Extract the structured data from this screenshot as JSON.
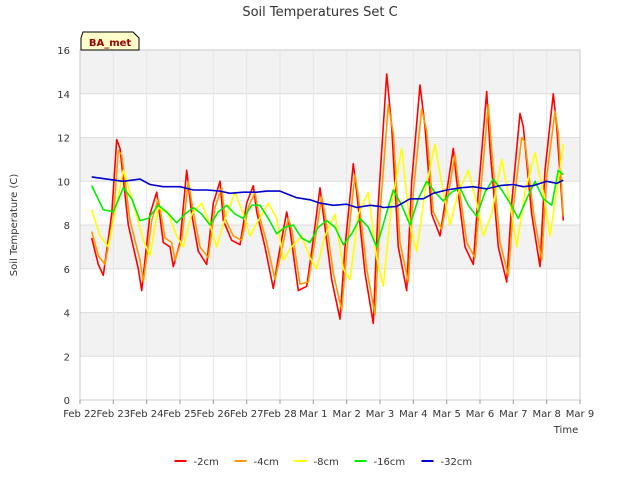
{
  "chart_data": {
    "type": "line",
    "title": "Soil Temperatures Set C",
    "xlabel": "Time",
    "ylabel": "Soil Temperature (C)",
    "badge": "BA_met",
    "ylim": [
      0,
      16
    ],
    "yticks": [
      0,
      2,
      4,
      6,
      8,
      10,
      12,
      14,
      16
    ],
    "xlim": [
      0,
      15
    ],
    "xticks": [
      0,
      1,
      2,
      3,
      4,
      5,
      6,
      7,
      8,
      9,
      10,
      11,
      12,
      13,
      14,
      15
    ],
    "xtick_labels": [
      "Feb 22",
      "Feb 23",
      "Feb 24",
      "Feb 25",
      "Feb 26",
      "Feb 27",
      "Feb 28",
      "Mar 1",
      "Mar 2",
      "Mar 3",
      "Mar 4",
      "Mar 5",
      "Mar 6",
      "Mar 7",
      "Mar 8",
      "Mar 9"
    ],
    "x_unit": "days since Feb 22",
    "grid": true,
    "legend_position": "bottom",
    "series": [
      {
        "name": "-2cm",
        "color": "#ff0000",
        "x": [
          0.35,
          0.55,
          0.7,
          0.95,
          1.1,
          1.2,
          1.45,
          1.75,
          1.85,
          2.1,
          2.3,
          2.5,
          2.7,
          2.8,
          3.0,
          3.2,
          3.35,
          3.55,
          3.8,
          4.0,
          4.2,
          4.3,
          4.55,
          4.8,
          5.0,
          5.2,
          5.3,
          5.55,
          5.8,
          5.95,
          6.2,
          6.3,
          6.55,
          6.8,
          6.95,
          7.2,
          7.3,
          7.55,
          7.8,
          7.95,
          8.2,
          8.3,
          8.55,
          8.8,
          8.95,
          9.2,
          9.35,
          9.55,
          9.8,
          9.95,
          10.2,
          10.35,
          10.55,
          10.8,
          10.95,
          11.2,
          11.3,
          11.55,
          11.8,
          11.95,
          12.2,
          12.3,
          12.55,
          12.8,
          12.95,
          13.2,
          13.3,
          13.55,
          13.8,
          13.95,
          14.2,
          14.3,
          14.5
        ],
        "y": [
          7.4,
          6.2,
          5.7,
          8.5,
          11.9,
          11.5,
          8.0,
          6.0,
          5.0,
          8.5,
          9.5,
          7.2,
          7.0,
          6.1,
          7.2,
          10.5,
          8.5,
          6.8,
          6.2,
          9.0,
          10.0,
          8.2,
          7.3,
          7.1,
          9.0,
          9.8,
          8.6,
          7.0,
          5.1,
          6.5,
          8.6,
          7.8,
          5.0,
          5.2,
          6.8,
          9.7,
          8.5,
          5.5,
          3.7,
          7.0,
          10.8,
          9.5,
          5.8,
          3.5,
          9.0,
          14.9,
          12.5,
          7.0,
          5.0,
          10.0,
          14.4,
          12.5,
          8.5,
          7.5,
          9.0,
          11.5,
          10.0,
          7.0,
          6.2,
          9.5,
          14.1,
          11.5,
          7.0,
          5.4,
          9.0,
          13.1,
          12.5,
          8.5,
          6.1,
          10.5,
          14.0,
          12.5,
          8.2
        ]
      },
      {
        "name": "-4cm",
        "color": "#ff9900",
        "x": [
          0.35,
          0.55,
          0.75,
          1.0,
          1.15,
          1.25,
          1.5,
          1.8,
          1.9,
          2.15,
          2.35,
          2.55,
          2.75,
          2.85,
          3.05,
          3.25,
          3.4,
          3.6,
          3.85,
          4.05,
          4.25,
          4.35,
          4.6,
          4.85,
          5.05,
          5.25,
          5.35,
          5.6,
          5.85,
          6.0,
          6.25,
          6.35,
          6.6,
          6.85,
          7.0,
          7.25,
          7.35,
          7.6,
          7.85,
          8.0,
          8.25,
          8.35,
          8.6,
          8.85,
          9.0,
          9.25,
          9.4,
          9.6,
          9.85,
          10.0,
          10.25,
          10.4,
          10.6,
          10.85,
          11.0,
          11.25,
          11.35,
          11.6,
          11.85,
          12.0,
          12.25,
          12.35,
          12.6,
          12.85,
          13.0,
          13.25,
          13.35,
          13.6,
          13.85,
          14.0,
          14.25,
          14.35,
          14.5
        ],
        "y": [
          7.7,
          6.6,
          6.2,
          8.3,
          11.4,
          11.2,
          8.2,
          6.4,
          5.4,
          8.2,
          9.2,
          7.4,
          7.2,
          6.4,
          7.3,
          10.0,
          8.6,
          7.0,
          6.5,
          8.8,
          9.7,
          8.3,
          7.5,
          7.3,
          8.8,
          9.5,
          8.6,
          7.2,
          5.5,
          6.5,
          8.3,
          7.8,
          5.3,
          5.4,
          6.8,
          9.3,
          8.5,
          5.8,
          4.1,
          6.8,
          10.3,
          9.3,
          6.0,
          3.9,
          8.5,
          13.5,
          12.2,
          7.2,
          5.4,
          9.5,
          13.3,
          12.3,
          8.6,
          7.8,
          9.0,
          11.2,
          10.0,
          7.2,
          6.5,
          9.2,
          13.5,
          11.4,
          7.2,
          5.7,
          8.8,
          12.0,
          11.8,
          8.6,
          6.4,
          10.2,
          13.2,
          12.2,
          8.4
        ]
      },
      {
        "name": "-8cm",
        "color": "#ffff00",
        "x": [
          0.35,
          0.6,
          0.85,
          1.1,
          1.3,
          1.6,
          1.9,
          2.1,
          2.35,
          2.65,
          2.9,
          3.1,
          3.35,
          3.65,
          3.9,
          4.1,
          4.35,
          4.65,
          4.9,
          5.1,
          5.35,
          5.65,
          5.9,
          6.1,
          6.35,
          6.65,
          6.9,
          7.1,
          7.35,
          7.65,
          7.9,
          8.1,
          8.35,
          8.65,
          8.9,
          9.1,
          9.35,
          9.65,
          9.9,
          10.1,
          10.35,
          10.65,
          10.9,
          11.1,
          11.35,
          11.65,
          11.9,
          12.1,
          12.35,
          12.65,
          12.9,
          13.1,
          13.35,
          13.65,
          13.9,
          14.1,
          14.35,
          14.5
        ],
        "y": [
          8.7,
          7.5,
          7.0,
          9.0,
          10.5,
          9.0,
          7.3,
          6.6,
          8.8,
          8.5,
          7.5,
          7.0,
          8.5,
          9.0,
          8.0,
          7.0,
          8.3,
          9.5,
          8.5,
          7.5,
          8.2,
          9.0,
          8.3,
          6.4,
          7.0,
          7.5,
          6.5,
          6.0,
          7.5,
          8.5,
          6.0,
          5.5,
          8.5,
          9.5,
          6.5,
          5.2,
          9.0,
          11.5,
          8.0,
          6.8,
          9.5,
          11.7,
          9.5,
          8.0,
          9.5,
          10.5,
          9.0,
          7.5,
          8.5,
          11.0,
          9.0,
          7.0,
          9.5,
          11.3,
          9.5,
          7.5,
          10.0,
          11.7
        ]
      },
      {
        "name": "-16cm",
        "color": "#00ee00",
        "x": [
          0.35,
          0.7,
          1.0,
          1.3,
          1.55,
          1.8,
          2.05,
          2.35,
          2.6,
          2.9,
          3.15,
          3.4,
          3.65,
          3.9,
          4.15,
          4.4,
          4.65,
          4.9,
          5.15,
          5.4,
          5.65,
          5.9,
          6.15,
          6.4,
          6.65,
          6.9,
          7.15,
          7.4,
          7.65,
          7.9,
          8.15,
          8.4,
          8.65,
          8.9,
          9.15,
          9.4,
          9.65,
          9.9,
          10.15,
          10.4,
          10.65,
          10.9,
          11.15,
          11.4,
          11.65,
          11.9,
          12.15,
          12.4,
          12.65,
          12.9,
          13.15,
          13.4,
          13.65,
          13.9,
          14.15,
          14.35,
          14.5
        ],
        "y": [
          9.8,
          8.7,
          8.6,
          9.7,
          9.2,
          8.2,
          8.3,
          8.9,
          8.6,
          8.1,
          8.5,
          8.8,
          8.5,
          8.0,
          8.6,
          8.9,
          8.5,
          8.3,
          8.9,
          8.9,
          8.3,
          7.6,
          7.9,
          8.0,
          7.4,
          7.2,
          7.9,
          8.2,
          7.9,
          7.1,
          7.6,
          8.3,
          7.9,
          7.0,
          8.3,
          9.6,
          8.9,
          8.0,
          9.2,
          10.0,
          9.5,
          9.1,
          9.5,
          9.7,
          8.9,
          8.4,
          9.5,
          10.1,
          9.6,
          9.0,
          8.3,
          9.2,
          10.0,
          9.2,
          8.9,
          10.5,
          10.3
        ]
      },
      {
        "name": "-32cm",
        "color": "#0000cc",
        "x": [
          0.35,
          0.8,
          1.3,
          1.8,
          2.1,
          2.5,
          3.0,
          3.4,
          3.8,
          4.2,
          4.5,
          4.9,
          5.3,
          5.6,
          6.0,
          6.5,
          6.9,
          7.2,
          7.6,
          8.0,
          8.3,
          8.7,
          9.0,
          9.1,
          9.5,
          9.9,
          10.3,
          10.6,
          11.0,
          11.4,
          11.8,
          12.2,
          12.6,
          13.0,
          13.3,
          13.6,
          14.0,
          14.3,
          14.5
        ],
        "y": [
          10.2,
          10.1,
          10.0,
          10.1,
          9.85,
          9.75,
          9.75,
          9.6,
          9.6,
          9.55,
          9.45,
          9.5,
          9.5,
          9.55,
          9.55,
          9.25,
          9.15,
          9.0,
          8.9,
          8.95,
          8.8,
          8.9,
          8.85,
          8.8,
          8.85,
          9.2,
          9.2,
          9.45,
          9.6,
          9.7,
          9.75,
          9.65,
          9.8,
          9.85,
          9.75,
          9.8,
          10.0,
          9.9,
          10.05
        ]
      }
    ]
  }
}
